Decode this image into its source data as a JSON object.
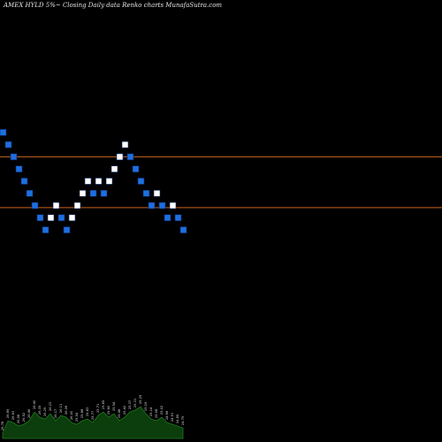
{
  "title": "AMEX  HYLD 5%~  Closing Daily data  Renko  charts MunafaSutra.com",
  "colors": {
    "background": "#000000",
    "up_brick": "#ffffff",
    "down_brick": "#1e6fe0",
    "brick_border": "#0a2a66",
    "ref_line": "#c8641e",
    "volume_fill": "#0c3d0c",
    "volume_stroke": "#1f7a1f",
    "label": "#d9d9d9"
  },
  "chart_data": {
    "type": "renko",
    "ylim": [
      24.9,
      26.25
    ],
    "reference_lines": [
      26.0,
      25.75
    ],
    "bricks": [
      {
        "dir": "down",
        "close": 26.12
      },
      {
        "dir": "down",
        "close": 26.06
      },
      {
        "dir": "down",
        "close": 26.0
      },
      {
        "dir": "down",
        "close": 25.94
      },
      {
        "dir": "down",
        "close": 25.88
      },
      {
        "dir": "down",
        "close": 25.82
      },
      {
        "dir": "down",
        "close": 25.76
      },
      {
        "dir": "down",
        "close": 25.7
      },
      {
        "dir": "down",
        "close": 25.64
      },
      {
        "dir": "up",
        "close": 25.7
      },
      {
        "dir": "up",
        "close": 25.76
      },
      {
        "dir": "down",
        "close": 25.7
      },
      {
        "dir": "down",
        "close": 25.64
      },
      {
        "dir": "up",
        "close": 25.7
      },
      {
        "dir": "up",
        "close": 25.76
      },
      {
        "dir": "up",
        "close": 25.82
      },
      {
        "dir": "up",
        "close": 25.88
      },
      {
        "dir": "down",
        "close": 25.82
      },
      {
        "dir": "up",
        "close": 25.88
      },
      {
        "dir": "down",
        "close": 25.82
      },
      {
        "dir": "up",
        "close": 25.88
      },
      {
        "dir": "up",
        "close": 25.94
      },
      {
        "dir": "up",
        "close": 26.0
      },
      {
        "dir": "up",
        "close": 26.06
      },
      {
        "dir": "down",
        "close": 26.0
      },
      {
        "dir": "down",
        "close": 25.94
      },
      {
        "dir": "down",
        "close": 25.88
      },
      {
        "dir": "down",
        "close": 25.82
      },
      {
        "dir": "down",
        "close": 25.76
      },
      {
        "dir": "up",
        "close": 25.82
      },
      {
        "dir": "down",
        "close": 25.76
      },
      {
        "dir": "down",
        "close": 25.7
      },
      {
        "dir": "up",
        "close": 25.76
      },
      {
        "dir": "down",
        "close": 25.7
      },
      {
        "dir": "down",
        "close": 25.64
      }
    ],
    "volume_labels": [
      "26.78",
      "26.69",
      "26.63",
      "26.58",
      "26.52",
      "26.46",
      "26.40",
      "26.35",
      "26.29",
      "26.23",
      "26.17",
      "26.11",
      "26.06",
      "26.00",
      "25.94",
      "25.88",
      "25.83",
      "25.77",
      "25.71",
      "25.65",
      "25.60",
      "25.54",
      "25.48",
      "25.42",
      "25.37",
      "25.31",
      "25.25",
      "25.19",
      "25.14",
      "25.08",
      "25.02",
      "24.96",
      "24.91",
      "24.85",
      "24.79"
    ],
    "volume_values": [
      3,
      10,
      9,
      7,
      8,
      10,
      15,
      12,
      11,
      14,
      10,
      13,
      12,
      9,
      8,
      10,
      11,
      9,
      13,
      15,
      12,
      14,
      10,
      12,
      15,
      16,
      18,
      14,
      11,
      10,
      12,
      9,
      8,
      7,
      6
    ]
  }
}
